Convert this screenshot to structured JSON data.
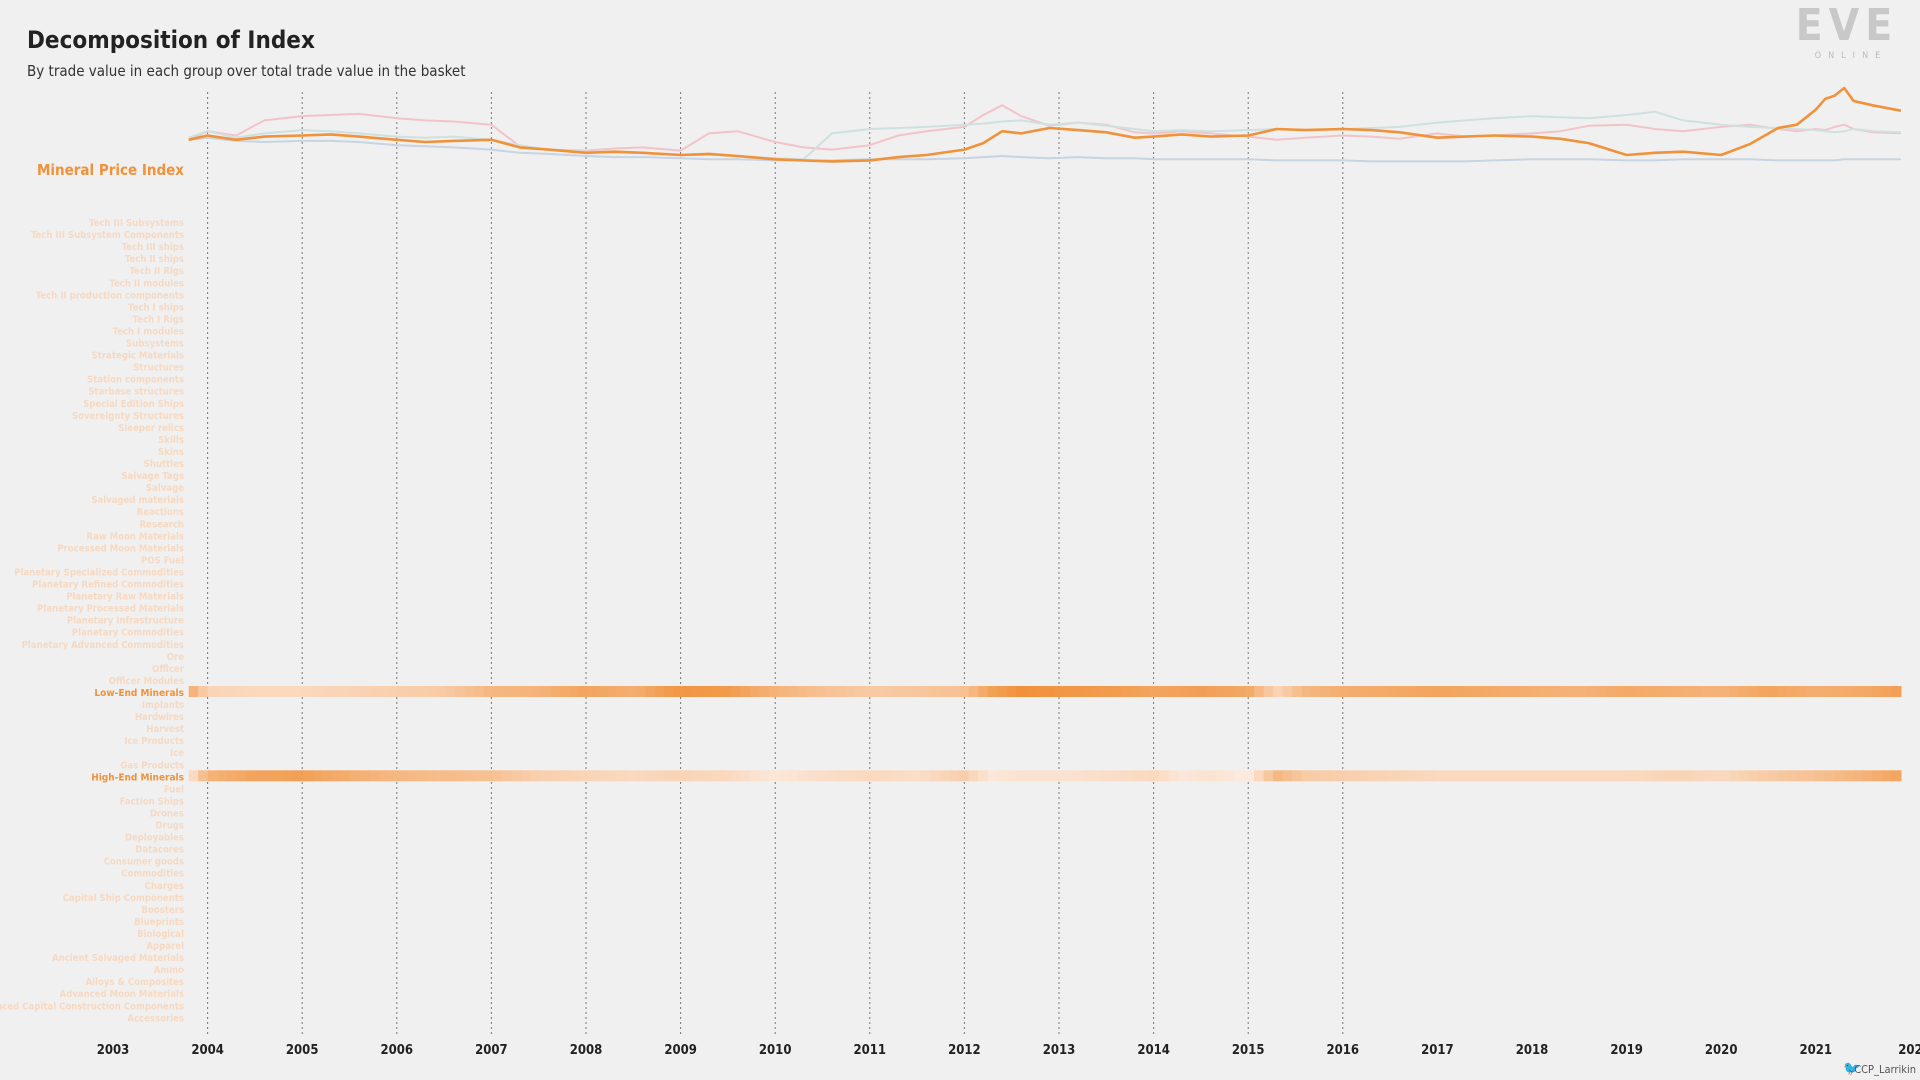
{
  "header": {
    "title": "Decomposition of Index",
    "subtitle": "By trade value in each group over total trade value in the basket"
  },
  "logo": {
    "text": "EVE",
    "subtext": "ONLINE",
    "name": "eve-online-logo"
  },
  "credit": {
    "text": "CCP_Larrikin",
    "icon": "twitter-bird-icon"
  },
  "colors": {
    "background": "#f0f0f0",
    "accent": "#f0923a",
    "pink_line": "#f2c4c8",
    "teal_line": "#cfe0e0",
    "blue_line": "#c7d4e2",
    "faint_label": "#f6d9c2",
    "text": "#222222"
  },
  "chart_data": [
    {
      "type": "line",
      "title": "Decomposition of Index",
      "subtitle": "By trade value in each group over total trade value in the basket",
      "series_label": "Mineral Price Index",
      "x": [
        2003.8,
        2004.0,
        2004.3,
        2004.6,
        2005.0,
        2005.3,
        2005.6,
        2006.0,
        2006.3,
        2006.6,
        2007.0,
        2007.3,
        2007.6,
        2008.0,
        2008.3,
        2008.6,
        2009.0,
        2009.3,
        2009.6,
        2010.0,
        2010.3,
        2010.6,
        2011.0,
        2011.3,
        2011.6,
        2012.0,
        2012.2,
        2012.4,
        2012.6,
        2012.9,
        2013.2,
        2013.5,
        2013.8,
        2014.0,
        2014.3,
        2014.6,
        2015.0,
        2015.3,
        2015.6,
        2016.0,
        2016.3,
        2016.6,
        2017.0,
        2017.3,
        2017.6,
        2018.0,
        2018.3,
        2018.6,
        2019.0,
        2019.3,
        2019.6,
        2020.0,
        2020.3,
        2020.6,
        2020.8,
        2021.0,
        2021.1,
        2021.2,
        2021.3,
        2021.4,
        2021.6,
        2021.9
      ],
      "series": [
        {
          "color": "#f0923a",
          "values": [
            0.52,
            0.56,
            0.52,
            0.55,
            0.56,
            0.57,
            0.55,
            0.52,
            0.5,
            0.51,
            0.52,
            0.45,
            0.43,
            0.4,
            0.41,
            0.4,
            0.38,
            0.39,
            0.37,
            0.34,
            0.33,
            0.32,
            0.33,
            0.36,
            0.38,
            0.43,
            0.49,
            0.6,
            0.58,
            0.63,
            0.61,
            0.59,
            0.54,
            0.55,
            0.57,
            0.55,
            0.56,
            0.62,
            0.61,
            0.62,
            0.61,
            0.59,
            0.54,
            0.55,
            0.56,
            0.55,
            0.53,
            0.49,
            0.38,
            0.4,
            0.41,
            0.38,
            0.48,
            0.63,
            0.66,
            0.8,
            0.9,
            0.93,
            1.0,
            0.88,
            0.84,
            0.79
          ]
        },
        {
          "color": "#f2c4c8",
          "values": [
            0.52,
            0.6,
            0.56,
            0.7,
            0.74,
            0.75,
            0.76,
            0.72,
            0.7,
            0.69,
            0.66,
            0.46,
            0.43,
            0.42,
            0.44,
            0.45,
            0.42,
            0.58,
            0.6,
            0.5,
            0.45,
            0.43,
            0.47,
            0.56,
            0.6,
            0.64,
            0.75,
            0.84,
            0.74,
            0.65,
            0.68,
            0.66,
            0.59,
            0.58,
            0.6,
            0.58,
            0.55,
            0.52,
            0.54,
            0.56,
            0.55,
            0.53,
            0.58,
            0.55,
            0.56,
            0.58,
            0.6,
            0.65,
            0.66,
            0.62,
            0.6,
            0.64,
            0.66,
            0.62,
            0.6,
            0.62,
            0.61,
            0.64,
            0.66,
            0.62,
            0.59,
            0.58
          ]
        },
        {
          "color": "#cfe0e0",
          "values": [
            0.54,
            0.6,
            0.54,
            0.58,
            0.61,
            0.6,
            0.58,
            0.55,
            0.54,
            0.55,
            0.52,
            0.47,
            0.43,
            0.41,
            0.4,
            0.4,
            0.38,
            0.38,
            0.37,
            0.35,
            0.34,
            0.58,
            0.62,
            0.63,
            0.64,
            0.66,
            0.67,
            0.69,
            0.7,
            0.66,
            0.68,
            0.65,
            0.62,
            0.6,
            0.61,
            0.6,
            0.61,
            0.62,
            0.61,
            0.62,
            0.63,
            0.64,
            0.68,
            0.7,
            0.72,
            0.74,
            0.73,
            0.72,
            0.75,
            0.78,
            0.7,
            0.66,
            0.64,
            0.63,
            0.62,
            0.61,
            0.6,
            0.59,
            0.6,
            0.62,
            0.6,
            0.59
          ]
        },
        {
          "color": "#c7d4e2",
          "values": [
            0.52,
            0.54,
            0.51,
            0.5,
            0.51,
            0.51,
            0.5,
            0.47,
            0.46,
            0.45,
            0.43,
            0.4,
            0.39,
            0.37,
            0.36,
            0.36,
            0.35,
            0.34,
            0.34,
            0.33,
            0.33,
            0.33,
            0.34,
            0.34,
            0.34,
            0.35,
            0.36,
            0.37,
            0.36,
            0.35,
            0.36,
            0.35,
            0.35,
            0.34,
            0.34,
            0.34,
            0.34,
            0.33,
            0.33,
            0.33,
            0.32,
            0.32,
            0.32,
            0.32,
            0.33,
            0.34,
            0.34,
            0.34,
            0.33,
            0.33,
            0.34,
            0.34,
            0.34,
            0.33,
            0.33,
            0.33,
            0.33,
            0.33,
            0.34,
            0.34,
            0.34,
            0.34
          ]
        }
      ]
    },
    {
      "type": "heatmap",
      "title": "",
      "xlim": [
        2003.8,
        2021.9
      ],
      "xlabel": "",
      "x_ticks": [
        "2003",
        "2004",
        "2005",
        "2006",
        "2007",
        "2008",
        "2009",
        "2010",
        "2011",
        "2012",
        "2013",
        "2014",
        "2015",
        "2016",
        "2017",
        "2018",
        "2019",
        "2020",
        "2021",
        "202"
      ],
      "gridlines_at": [
        2004,
        2005,
        2006,
        2007,
        2008,
        2009,
        2010,
        2011,
        2012,
        2013,
        2014,
        2015,
        2016
      ],
      "rows": [
        "Tech III Subsystems",
        "Tech III Subsystem Components",
        "Tech III ships",
        "Tech II ships",
        "Tech II Rigs",
        "Tech II modules",
        "Tech II production components",
        "Tech I ships",
        "Tech I Rigs",
        "Tech I modules",
        "Subsystems",
        "Strategic Materials",
        "Structures",
        "Station components",
        "Starbase structures",
        "Special Edition Ships",
        "Sovereignty Structures",
        "Sleeper relics",
        "Skills",
        "Skins",
        "Shuttles",
        "Salvage Tags",
        "Salvage",
        "Salvaged materials",
        "Reactions",
        "Research",
        "Raw Moon Materials",
        "Processed Moon Materials",
        "POS Fuel",
        "Planetary Specialized Commodities",
        "Planetary Refined Commodities",
        "Planetary Raw Materials",
        "Planetary Processed Materials",
        "Planetary Infrastructure",
        "Planetary Commodities",
        "Planetary Advanced Commodities",
        "Ore",
        "Officer",
        "Officer Modules",
        "Low-End Minerals",
        "Implants",
        "Hardwires",
        "Harvest",
        "Ice Products",
        "Ice",
        "Gas Products",
        "High-End Minerals",
        "Fuel",
        "Faction Ships",
        "Drones",
        "Drugs",
        "Deployables",
        "Datacores",
        "Consumer goods",
        "Commodities",
        "Charges",
        "Capital Ship Components",
        "Boosters",
        "Blueprints",
        "Biological",
        "Apparel",
        "Ancient Salvaged Materials",
        "Ammo",
        "Alloys & Composites",
        "Advanced Moon Materials",
        "Advanced Capital Construction Components",
        "Accessories"
      ],
      "highlighted_rows": {
        "Low-End Minerals": {
          "x": [
            2003.8,
            2004.0,
            2004.5,
            2005.0,
            2005.5,
            2006.0,
            2006.5,
            2007.0,
            2007.5,
            2008.0,
            2008.5,
            2009.0,
            2009.5,
            2010.0,
            2010.5,
            2011.0,
            2011.5,
            2012.0,
            2012.3,
            2012.6,
            2013.0,
            2013.5,
            2014.0,
            2014.5,
            2015.0,
            2015.3,
            2015.6,
            2016.0,
            2016.5,
            2017.0,
            2017.5,
            2018.0,
            2018.5,
            2019.0,
            2019.5,
            2020.0,
            2020.5,
            2021.0,
            2021.5,
            2021.9
          ],
          "values": [
            0.7,
            0.25,
            0.2,
            0.2,
            0.25,
            0.3,
            0.35,
            0.55,
            0.6,
            0.75,
            0.65,
            0.9,
            0.85,
            0.6,
            0.45,
            0.35,
            0.4,
            0.45,
            0.8,
            0.95,
            0.9,
            0.85,
            0.75,
            0.8,
            0.7,
            0.25,
            0.55,
            0.65,
            0.7,
            0.75,
            0.7,
            0.65,
            0.6,
            0.7,
            0.65,
            0.6,
            0.75,
            0.65,
            0.7,
            0.8
          ]
        },
        "High-End Minerals": {
          "x": [
            2003.8,
            2004.0,
            2004.5,
            2005.0,
            2005.5,
            2006.0,
            2006.5,
            2007.0,
            2007.5,
            2008.0,
            2008.5,
            2009.0,
            2009.5,
            2010.0,
            2010.5,
            2011.0,
            2011.5,
            2012.0,
            2012.3,
            2012.6,
            2013.0,
            2013.5,
            2014.0,
            2014.3,
            2014.6,
            2015.0,
            2015.3,
            2015.6,
            2016.0,
            2016.5,
            2017.0,
            2017.5,
            2018.0,
            2018.5,
            2019.0,
            2019.5,
            2020.0,
            2020.5,
            2021.0,
            2021.5,
            2021.9
          ],
          "values": [
            0.05,
            0.6,
            0.75,
            0.8,
            0.65,
            0.55,
            0.5,
            0.45,
            0.3,
            0.25,
            0.2,
            0.25,
            0.2,
            0.05,
            0.15,
            0.2,
            0.15,
            0.3,
            0.05,
            0.1,
            0.1,
            0.15,
            0.2,
            0.05,
            0.1,
            0.0,
            0.55,
            0.35,
            0.3,
            0.25,
            0.2,
            0.2,
            0.2,
            0.2,
            0.2,
            0.25,
            0.2,
            0.35,
            0.45,
            0.6,
            0.75
          ]
        }
      }
    }
  ]
}
